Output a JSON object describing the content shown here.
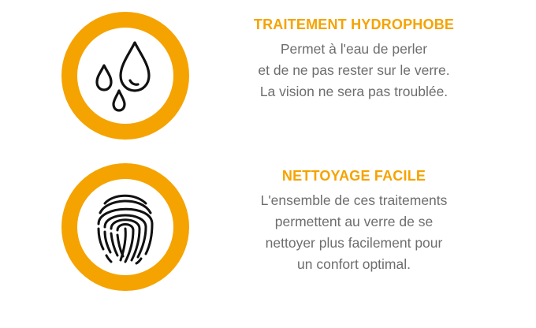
{
  "features": [
    {
      "icon": "water-drops-icon",
      "title": "TRAITEMENT HYDROPHOBE",
      "lines": [
        "Permet à l'eau de perler",
        "et de ne pas rester sur le verre.",
        "La vision ne sera pas troublée."
      ]
    },
    {
      "icon": "fingerprint-icon",
      "title": "NETTOYAGE FACILE",
      "lines": [
        "L'ensemble de ces traitements",
        "permettent au verre de se",
        "nettoyer plus facilement pour",
        "un confort optimal."
      ]
    }
  ],
  "colors": {
    "accent": "#f5a300",
    "text": "#6d6d6d",
    "background": "#ffffff"
  }
}
